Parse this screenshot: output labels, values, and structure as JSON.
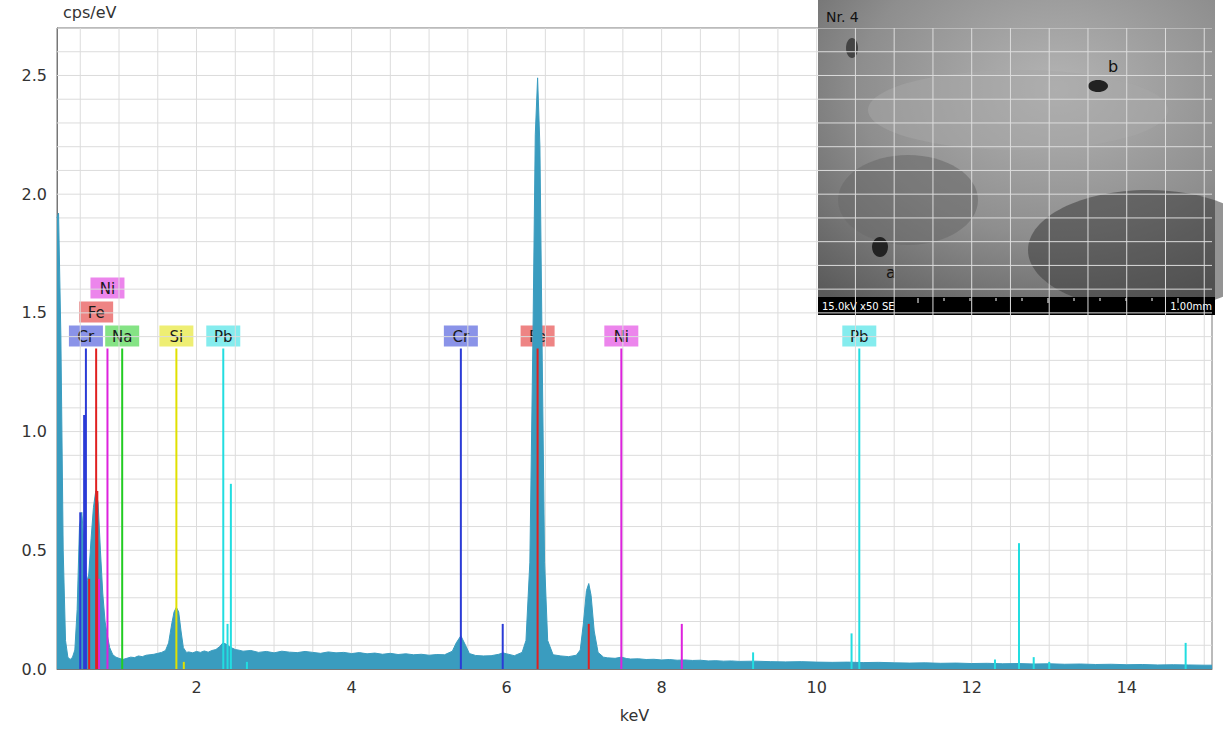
{
  "chart_data": {
    "type": "line",
    "xlabel": "keV",
    "ylabel": "cps/eV",
    "color": "#3a9cbf",
    "grid": true,
    "xlim": [
      0.2,
      15.1
    ],
    "xticks": [
      2,
      4,
      6,
      8,
      10,
      12,
      14
    ],
    "ylim": [
      0,
      2.7
    ],
    "yticks": [
      {
        "value": 0,
        "label": "0.0"
      },
      {
        "value": 0.5,
        "label": "0.5"
      },
      {
        "value": 1,
        "label": "1.0"
      },
      {
        "value": 1.5,
        "label": "1.5"
      },
      {
        "value": 2,
        "label": "2.0"
      },
      {
        "value": 2.5,
        "label": "2.5"
      }
    ],
    "x": [
      0.2,
      0.22,
      0.25,
      0.28,
      0.31,
      0.34,
      0.37,
      0.4,
      0.43,
      0.46,
      0.49,
      0.52,
      0.55,
      0.58,
      0.61,
      0.64,
      0.67,
      0.7,
      0.73,
      0.76,
      0.79,
      0.82,
      0.85,
      0.88,
      0.92,
      0.96,
      1.0,
      1.05,
      1.1,
      1.15,
      1.2,
      1.25,
      1.3,
      1.35,
      1.4,
      1.45,
      1.5,
      1.55,
      1.6,
      1.64,
      1.68,
      1.71,
      1.74,
      1.77,
      1.8,
      1.83,
      1.87,
      1.9,
      1.95,
      2.0,
      2.05,
      2.1,
      2.15,
      2.2,
      2.25,
      2.3,
      2.34,
      2.38,
      2.42,
      2.46,
      2.5,
      2.55,
      2.6,
      2.7,
      2.8,
      2.9,
      3.0,
      3.1,
      3.2,
      3.3,
      3.4,
      3.5,
      3.6,
      3.7,
      3.8,
      3.9,
      4.0,
      4.1,
      4.2,
      4.3,
      4.4,
      4.5,
      4.6,
      4.7,
      4.8,
      4.9,
      5.0,
      5.1,
      5.2,
      5.3,
      5.35,
      5.41,
      5.47,
      5.52,
      5.6,
      5.7,
      5.8,
      5.9,
      5.95,
      6.0,
      6.1,
      6.2,
      6.25,
      6.3,
      6.34,
      6.37,
      6.4,
      6.43,
      6.46,
      6.49,
      6.53,
      6.6,
      6.7,
      6.8,
      6.9,
      6.95,
      6.99,
      7.03,
      7.06,
      7.09,
      7.13,
      7.18,
      7.25,
      7.3,
      7.4,
      7.48,
      7.55,
      7.6,
      7.7,
      7.8,
      7.9,
      8.0,
      8.1,
      8.2,
      8.3,
      8.4,
      8.5,
      8.6,
      8.7,
      8.8,
      8.9,
      9.0,
      9.2,
      9.4,
      9.6,
      9.8,
      10.0,
      10.2,
      10.4,
      10.6,
      10.8,
      11.0,
      11.2,
      11.4,
      11.6,
      11.8,
      12.0,
      12.2,
      12.4,
      12.6,
      12.8,
      13.0,
      13.2,
      13.4,
      13.6,
      13.8,
      14.0,
      14.2,
      14.4,
      14.6,
      14.8,
      15.0,
      15.1
    ],
    "values": [
      1.9,
      1.92,
      1.4,
      0.5,
      0.12,
      0.05,
      0.04,
      0.05,
      0.08,
      0.25,
      0.6,
      0.66,
      0.52,
      0.36,
      0.4,
      0.55,
      0.68,
      0.75,
      0.7,
      0.5,
      0.32,
      0.2,
      0.14,
      0.09,
      0.06,
      0.05,
      0.045,
      0.04,
      0.045,
      0.05,
      0.048,
      0.055,
      0.052,
      0.058,
      0.06,
      0.062,
      0.066,
      0.07,
      0.078,
      0.11,
      0.19,
      0.24,
      0.26,
      0.24,
      0.16,
      0.09,
      0.07,
      0.072,
      0.068,
      0.074,
      0.07,
      0.076,
      0.071,
      0.078,
      0.082,
      0.095,
      0.11,
      0.105,
      0.095,
      0.088,
      0.082,
      0.079,
      0.075,
      0.078,
      0.07,
      0.074,
      0.068,
      0.075,
      0.071,
      0.069,
      0.074,
      0.07,
      0.066,
      0.072,
      0.068,
      0.07,
      0.065,
      0.069,
      0.064,
      0.067,
      0.062,
      0.066,
      0.061,
      0.064,
      0.06,
      0.062,
      0.058,
      0.061,
      0.06,
      0.075,
      0.11,
      0.14,
      0.1,
      0.065,
      0.057,
      0.055,
      0.056,
      0.062,
      0.068,
      0.064,
      0.056,
      0.07,
      0.12,
      0.45,
      1.4,
      2.25,
      2.49,
      2.2,
      1.3,
      0.45,
      0.12,
      0.06,
      0.055,
      0.052,
      0.058,
      0.08,
      0.19,
      0.33,
      0.36,
      0.31,
      0.16,
      0.07,
      0.05,
      0.047,
      0.045,
      0.05,
      0.044,
      0.042,
      0.043,
      0.04,
      0.041,
      0.038,
      0.04,
      0.037,
      0.038,
      0.036,
      0.037,
      0.034,
      0.035,
      0.033,
      0.034,
      0.032,
      0.033,
      0.031,
      0.03,
      0.031,
      0.029,
      0.028,
      0.029,
      0.027,
      0.028,
      0.026,
      0.025,
      0.026,
      0.024,
      0.025,
      0.023,
      0.024,
      0.022,
      0.023,
      0.021,
      0.022,
      0.02,
      0.021,
      0.019,
      0.02,
      0.018,
      0.019,
      0.017,
      0.018,
      0.017,
      0.016,
      0.016
    ],
    "elements": [
      {
        "name": "Cr",
        "color": "#2b3bd6",
        "lines": [
          {
            "x": 0.573,
            "height": 1.35
          },
          {
            "x": 0.5,
            "height": 0.66
          },
          {
            "x": 0.55,
            "height": 1.07
          },
          {
            "x": 5.41,
            "height": 1.35
          },
          {
            "x": 5.95,
            "height": 0.19
          }
        ]
      },
      {
        "name": "Fe",
        "color": "#e02020",
        "lines": [
          {
            "x": 0.705,
            "height": 1.35
          },
          {
            "x": 0.615,
            "height": 0.38
          },
          {
            "x": 0.72,
            "height": 0.75
          },
          {
            "x": 6.4,
            "height": 1.35
          },
          {
            "x": 7.06,
            "height": 0.19
          }
        ]
      },
      {
        "name": "Ni",
        "color": "#dd22dd",
        "lines": [
          {
            "x": 0.851,
            "height": 1.35
          },
          {
            "x": 0.743,
            "height": 0.38
          },
          {
            "x": 7.48,
            "height": 1.35
          },
          {
            "x": 8.26,
            "height": 0.19
          }
        ]
      },
      {
        "name": "Na",
        "color": "#22cc22",
        "lines": [
          {
            "x": 1.041,
            "height": 1.35
          }
        ]
      },
      {
        "name": "Si",
        "color": "#e0e000",
        "lines": [
          {
            "x": 1.74,
            "height": 1.35
          },
          {
            "x": 1.836,
            "height": 0.03
          }
        ]
      },
      {
        "name": "Pb",
        "color": "#22dde0",
        "lines": [
          {
            "x": 2.345,
            "height": 1.35
          },
          {
            "x": 2.443,
            "height": 0.78
          },
          {
            "x": 2.4,
            "height": 0.19
          },
          {
            "x": 2.65,
            "height": 0.03
          },
          {
            "x": 9.18,
            "height": 0.07
          },
          {
            "x": 10.45,
            "height": 0.15
          },
          {
            "x": 10.55,
            "height": 1.35
          },
          {
            "x": 12.3,
            "height": 0.04
          },
          {
            "x": 12.61,
            "height": 0.53
          },
          {
            "x": 12.8,
            "height": 0.05
          },
          {
            "x": 13.0,
            "height": 0.03
          },
          {
            "x": 14.76,
            "height": 0.11
          }
        ]
      }
    ],
    "inset": {
      "title": "Nr. 4",
      "markers": [
        "a",
        "b"
      ],
      "info": "15.0kV x50 SE",
      "scale_bar": "1.00mm"
    }
  }
}
